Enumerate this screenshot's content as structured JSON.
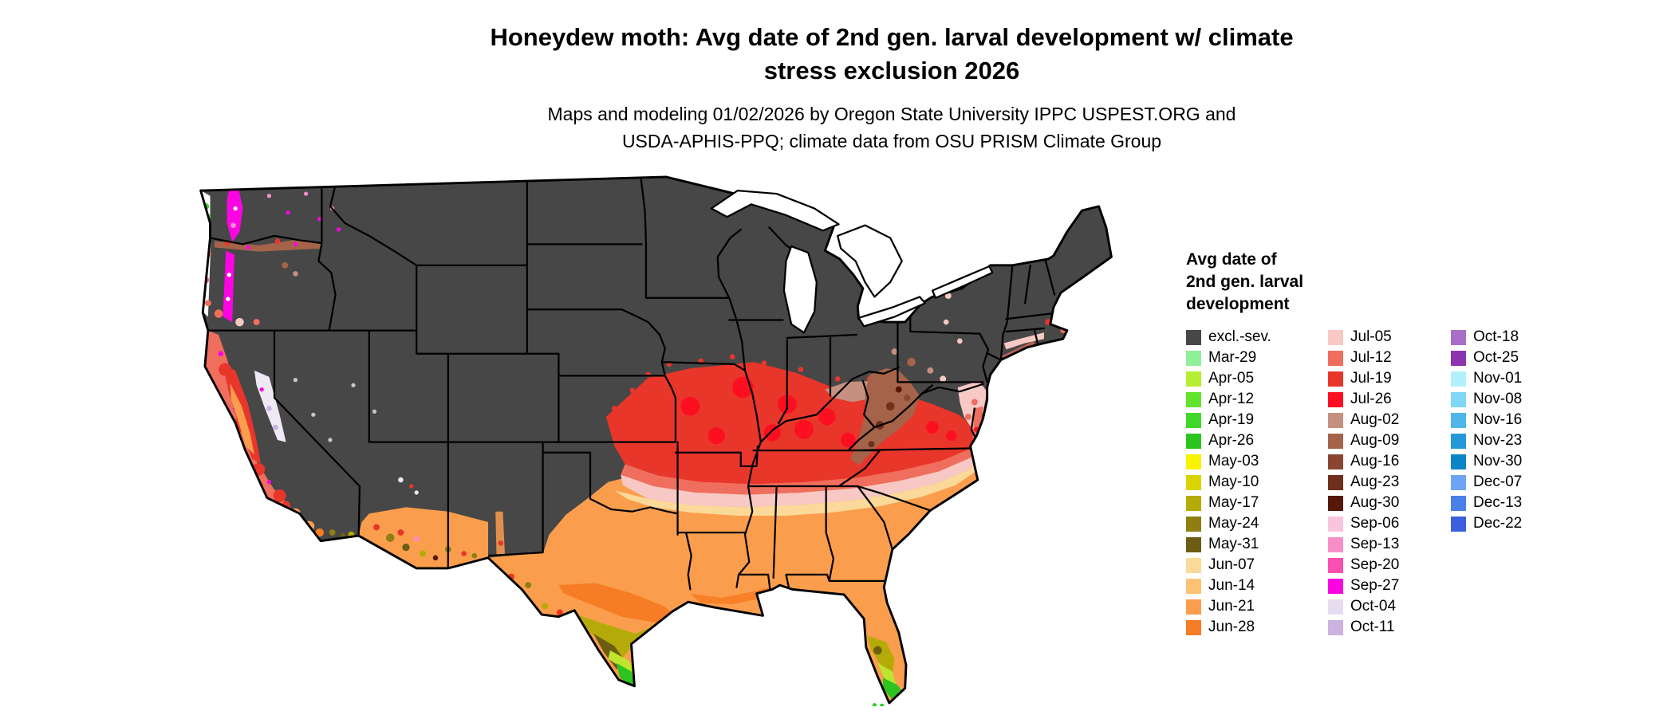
{
  "header": {
    "title_line1": "Honeydew moth: Avg date of 2nd gen. larval development w/ climate",
    "title_line2": "stress exclusion 2026",
    "subtitle_line1": "Maps and modeling 01/02/2026 by Oregon State University IPPC USPEST.ORG and",
    "subtitle_line2": "USDA-APHIS-PPQ; climate data from OSU PRISM Climate Group"
  },
  "legend": {
    "title_line1": "Avg date of",
    "title_line2": "2nd gen. larval",
    "title_line3": "development",
    "columns": [
      15,
      15,
      10
    ],
    "entries": [
      {
        "label": "excl.-sev.",
        "color": "#474747"
      },
      {
        "label": "Mar-29",
        "color": "#90f09a"
      },
      {
        "label": "Apr-05",
        "color": "#b5ee35"
      },
      {
        "label": "Apr-12",
        "color": "#62e42c"
      },
      {
        "label": "Apr-19",
        "color": "#3fd82a"
      },
      {
        "label": "Apr-26",
        "color": "#2cc41f"
      },
      {
        "label": "May-03",
        "color": "#f8f400"
      },
      {
        "label": "May-10",
        "color": "#d8d303"
      },
      {
        "label": "May-17",
        "color": "#b5ab08"
      },
      {
        "label": "May-24",
        "color": "#8f7f10"
      },
      {
        "label": "May-31",
        "color": "#6b5d13"
      },
      {
        "label": "Jun-07",
        "color": "#fbd998"
      },
      {
        "label": "Jun-14",
        "color": "#fcc272"
      },
      {
        "label": "Jun-21",
        "color": "#fa9e4d"
      },
      {
        "label": "Jun-28",
        "color": "#f67c25"
      },
      {
        "label": "Jul-05",
        "color": "#f8c9c4"
      },
      {
        "label": "Jul-12",
        "color": "#ef6e5e"
      },
      {
        "label": "Jul-19",
        "color": "#e9362a"
      },
      {
        "label": "Jul-26",
        "color": "#fc0f20"
      },
      {
        "label": "Aug-02",
        "color": "#c59080"
      },
      {
        "label": "Aug-09",
        "color": "#a5634a"
      },
      {
        "label": "Aug-16",
        "color": "#8a4530"
      },
      {
        "label": "Aug-23",
        "color": "#6f2f1c"
      },
      {
        "label": "Aug-30",
        "color": "#541708"
      },
      {
        "label": "Sep-06",
        "color": "#f9c4dd"
      },
      {
        "label": "Sep-13",
        "color": "#f68fc7"
      },
      {
        "label": "Sep-20",
        "color": "#f94fb3"
      },
      {
        "label": "Sep-27",
        "color": "#fd05e3"
      },
      {
        "label": "Oct-04",
        "color": "#e6dcf0"
      },
      {
        "label": "Oct-11",
        "color": "#cbb2e0"
      },
      {
        "label": "Oct-18",
        "color": "#a96fc8"
      },
      {
        "label": "Oct-25",
        "color": "#8c35ae"
      },
      {
        "label": "Nov-01",
        "color": "#b2f1fc"
      },
      {
        "label": "Nov-08",
        "color": "#7ed7f5"
      },
      {
        "label": "Nov-16",
        "color": "#4fb6e9"
      },
      {
        "label": "Nov-23",
        "color": "#2499d9"
      },
      {
        "label": "Nov-30",
        "color": "#0a85c6"
      },
      {
        "label": "Dec-07",
        "color": "#6fa3f3"
      },
      {
        "label": "Dec-13",
        "color": "#4b80e8"
      },
      {
        "label": "Dec-22",
        "color": "#3a60e0"
      }
    ]
  }
}
